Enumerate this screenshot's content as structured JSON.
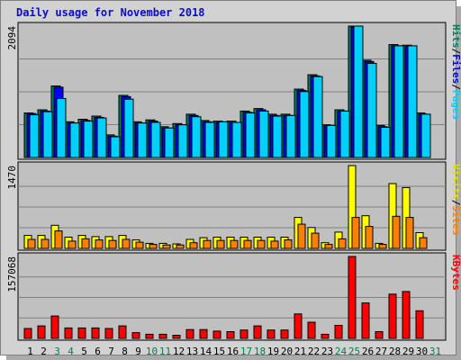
{
  "chart_data": {
    "type": "bar",
    "title": "Daily usage for November 2018",
    "categories": [
      "1",
      "2",
      "3",
      "4",
      "5",
      "6",
      "7",
      "8",
      "9",
      "10",
      "11",
      "12",
      "13",
      "14",
      "15",
      "16",
      "17",
      "18",
      "19",
      "20",
      "21",
      "22",
      "23",
      "24",
      "25",
      "26",
      "27",
      "28",
      "29",
      "30",
      "31"
    ],
    "weekend_days": [
      "3",
      "4",
      "10",
      "11",
      "17",
      "18",
      "24",
      "25",
      "31"
    ],
    "panels": [
      {
        "id": "pages-files-hits",
        "max_label": "2094",
        "ylim": [
          0,
          2094
        ],
        "legend": [
          "Pages",
          "Files",
          "Hits"
        ],
        "series": [
          {
            "name": "Hits",
            "color": "#00805c",
            "values": [
              710,
              760,
              1140,
              570,
              610,
              660,
              360,
              990,
              570,
              600,
              490,
              540,
              690,
              590,
              580,
              580,
              740,
              780,
              690,
              690,
              1090,
              1320,
              520,
              760,
              2094,
              1550,
              510,
              1800,
              1790,
              710,
              0
            ]
          },
          {
            "name": "Files",
            "color": "#0000ff",
            "values": [
              700,
              740,
              1120,
              550,
              590,
              640,
              340,
              970,
              550,
              580,
              470,
              520,
              670,
              570,
              560,
              560,
              720,
              760,
              670,
              670,
              1070,
              1300,
              500,
              740,
              2080,
              1530,
              490,
              1780,
              1770,
              690,
              0
            ]
          },
          {
            "name": "Pages",
            "color": "#00d0ff",
            "values": [
              680,
              730,
              940,
              550,
              580,
              630,
              330,
              930,
              550,
              560,
              470,
              520,
              650,
              560,
              570,
              560,
              710,
              740,
              660,
              670,
              1050,
              1290,
              510,
              740,
              2094,
              1500,
              480,
              1780,
              1780,
              690,
              0
            ]
          }
        ]
      },
      {
        "id": "visits-sites",
        "max_label": "1470",
        "ylim": [
          0,
          1470
        ],
        "legend": [
          "Sites",
          "Visits"
        ],
        "series": [
          {
            "name": "Visits",
            "color": "#ffff00",
            "values": [
              230,
              230,
              410,
              200,
              230,
              210,
              210,
              230,
              150,
              90,
              90,
              80,
              160,
              190,
              200,
              200,
              200,
              200,
              200,
              200,
              550,
              370,
              100,
              290,
              1470,
              580,
              90,
              1150,
              1080,
              280,
              0
            ]
          },
          {
            "name": "Sites",
            "color": "#ff8000",
            "values": [
              160,
              160,
              310,
              130,
              170,
              150,
              140,
              160,
              110,
              70,
              60,
              60,
              100,
              140,
              140,
              140,
              140,
              140,
              130,
              150,
              430,
              270,
              70,
              170,
              550,
              390,
              70,
              570,
              550,
              190,
              0
            ]
          }
        ]
      },
      {
        "id": "kbytes",
        "max_label": "157068",
        "ylim": [
          0,
          157068
        ],
        "legend": [
          "KBytes"
        ],
        "series": [
          {
            "name": "KBytes",
            "color": "#ff0000",
            "values": [
              19000,
              24000,
              43000,
              20000,
              20000,
              20000,
              19000,
              24000,
              11000,
              8000,
              8000,
              6000,
              17000,
              17000,
              14000,
              13000,
              16000,
              24000,
              16000,
              16000,
              47000,
              31000,
              8000,
              25000,
              157068,
              68000,
              13000,
              85000,
              90000,
              53000,
              0
            ]
          }
        ]
      }
    ]
  }
}
